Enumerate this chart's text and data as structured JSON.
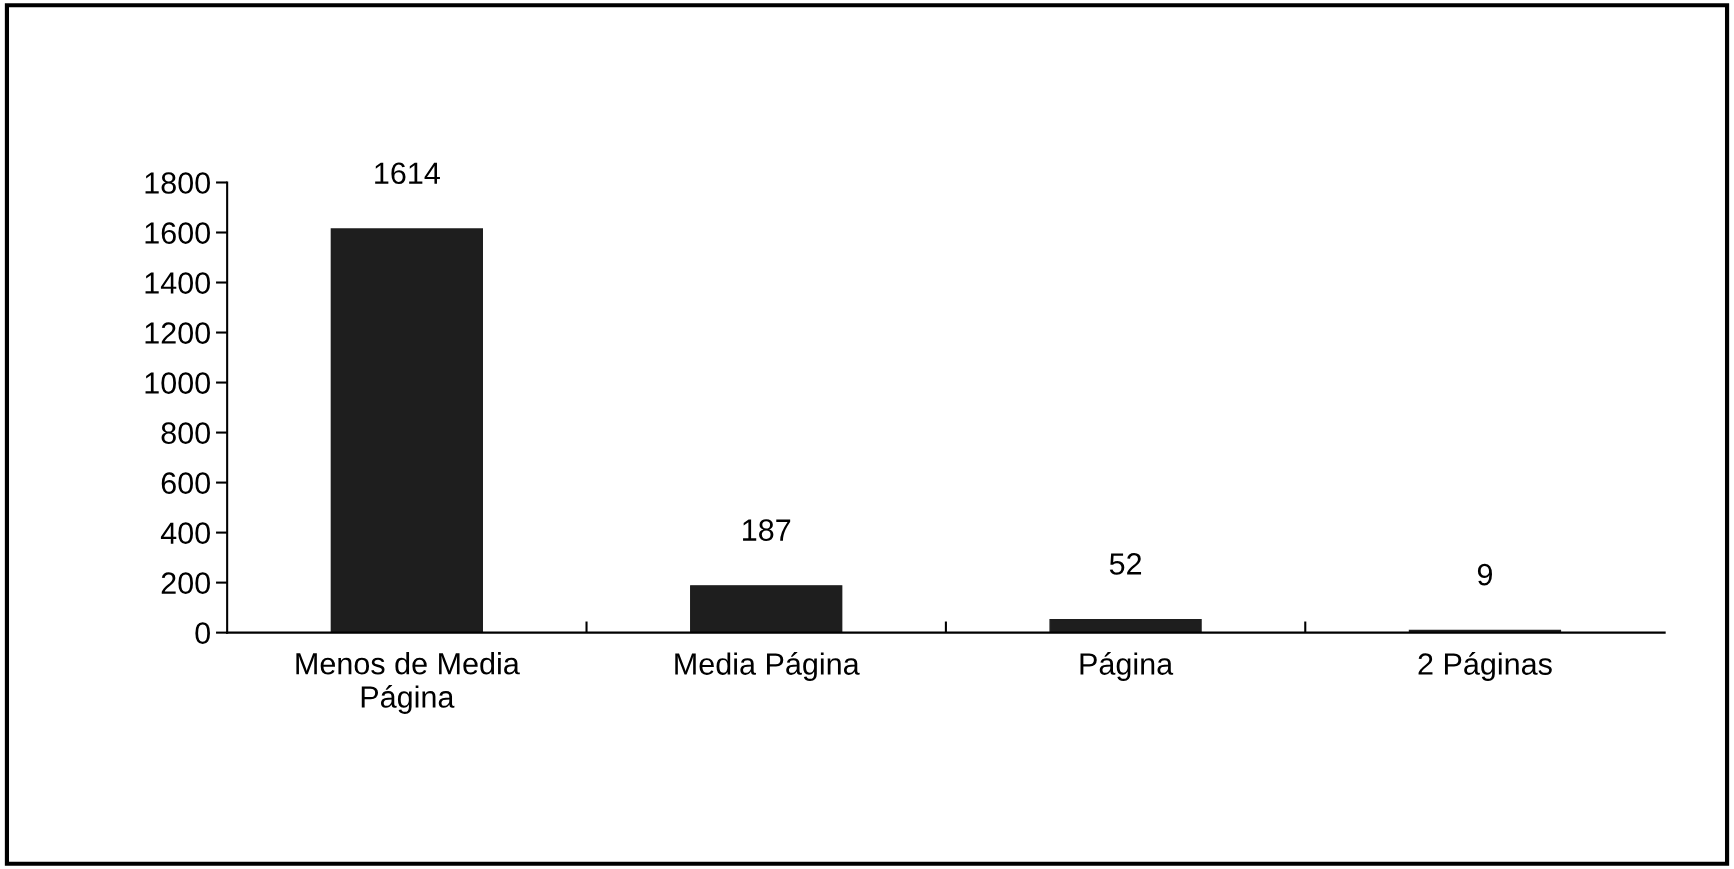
{
  "chart_data": {
    "type": "bar",
    "categories": [
      "Menos de Media\nPágina",
      "Media Página",
      "Página",
      "2 Páginas"
    ],
    "values": [
      1614,
      187,
      52,
      9
    ],
    "color": "#1e1e1e",
    "ylim": [
      0,
      1800
    ],
    "yticks": [
      0,
      200,
      400,
      600,
      800,
      1000,
      1200,
      1400,
      1600,
      1800
    ],
    "data_labels": true,
    "grid": false,
    "legend": false
  }
}
